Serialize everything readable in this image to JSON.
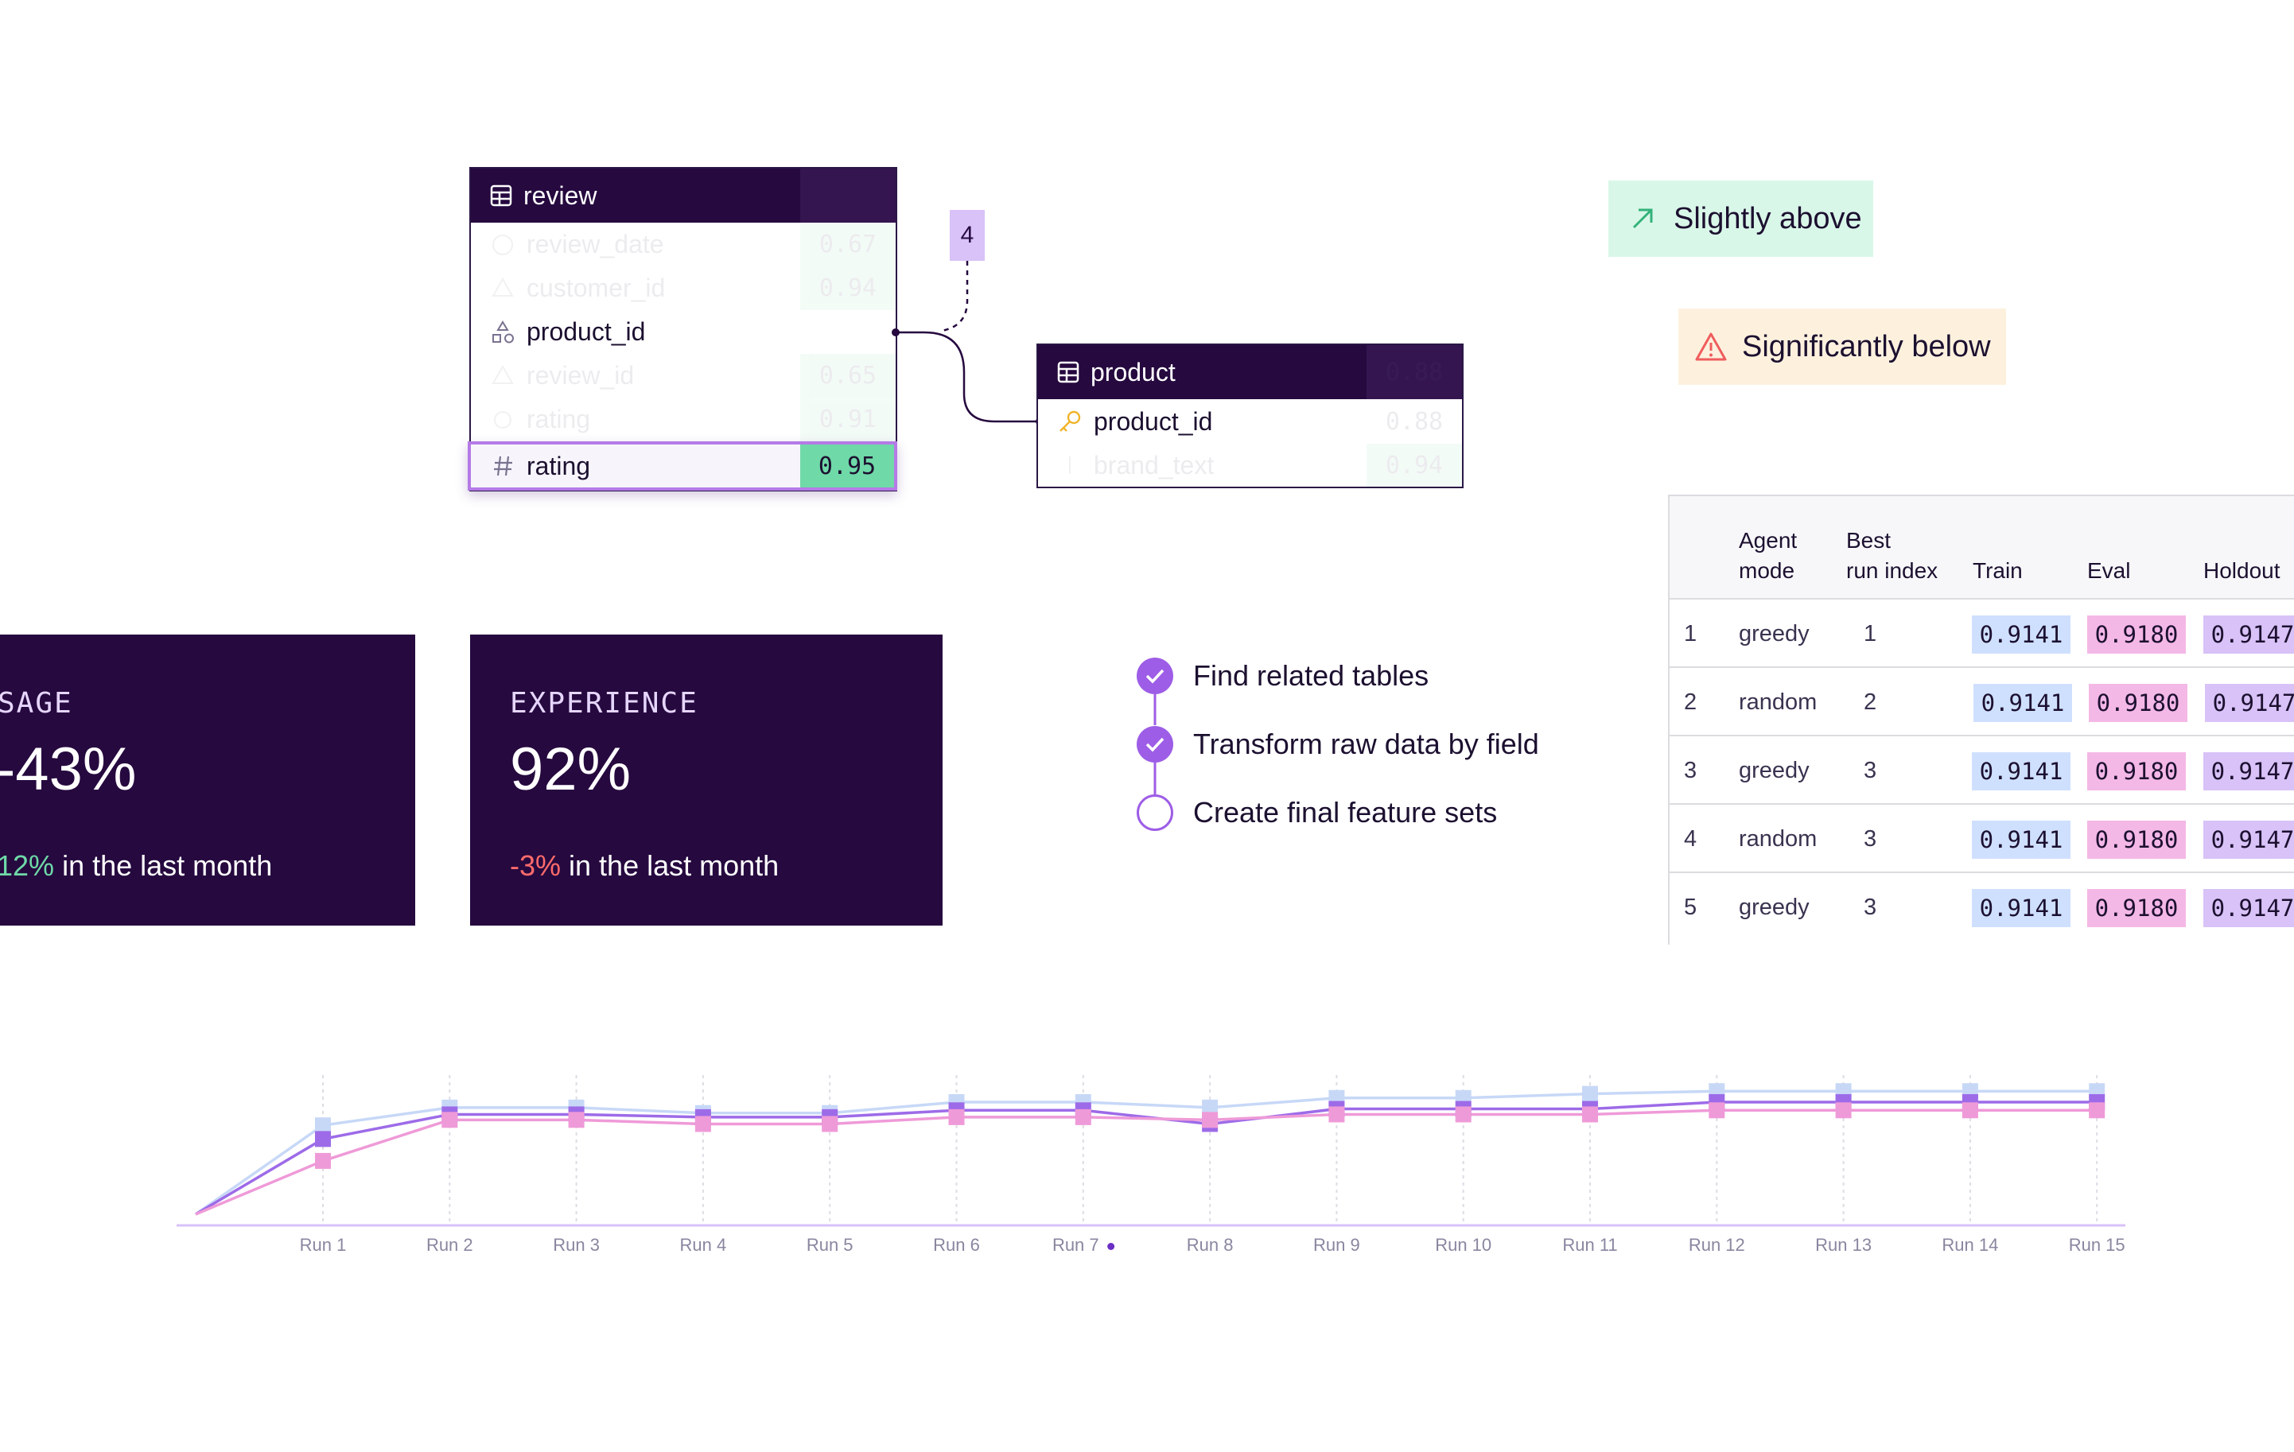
{
  "review": {
    "title": "review",
    "rows": [
      {
        "label": "review_date",
        "score": "0.67"
      },
      {
        "label": "customer_id",
        "score": "0.94"
      },
      {
        "label": "product_id",
        "score": ""
      },
      {
        "label": "review_id",
        "score": "0.65"
      },
      {
        "label": "rating",
        "score": "0.91"
      }
    ],
    "selected": {
      "label": "rating",
      "score": "0.95"
    }
  },
  "connector_count": "4",
  "product": {
    "title": "product",
    "header_score": "0.88",
    "rows": [
      {
        "label": "product_id",
        "score": "0.88"
      },
      {
        "label": "brand_text",
        "score": "0.94"
      }
    ]
  },
  "badges": {
    "above": {
      "label": "Slightly above",
      "icon": "arrow-up-right-icon",
      "color": "#d9f7e8"
    },
    "below": {
      "label": "Significantly below",
      "icon": "warning-triangle-icon",
      "color": "#fdf1de"
    }
  },
  "stats": [
    {
      "label": "SAGE",
      "value": "-43%",
      "delta": "12%",
      "suffix": " in the last month",
      "delta_color": "#6fd9a8"
    },
    {
      "label": "EXPERIENCE",
      "value": "92%",
      "delta": "-3%",
      "suffix": " in the last month",
      "delta_color": "#ff6b6b"
    }
  ],
  "steps": [
    {
      "label": "Find related tables",
      "done": true
    },
    {
      "label": "Transform raw data by field",
      "done": true
    },
    {
      "label": "Create final feature sets",
      "done": false
    }
  ],
  "table": {
    "headers": {
      "mode": [
        "Agent",
        "mode"
      ],
      "best": [
        "Best",
        "run index"
      ],
      "train": "Train",
      "eval": "Eval",
      "holdout": "Holdout"
    },
    "rows": [
      {
        "idx": "1",
        "mode": "greedy",
        "best": "1",
        "train": "0.9141",
        "eval": "0.9180",
        "holdout": "0.9147"
      },
      {
        "idx": "2",
        "mode": "random",
        "best": "2",
        "train": "0.9141",
        "eval": "0.9180",
        "holdout": "0.9147"
      },
      {
        "idx": "3",
        "mode": "greedy",
        "best": "3",
        "train": "0.9141",
        "eval": "0.9180",
        "holdout": "0.9147"
      },
      {
        "idx": "4",
        "mode": "random",
        "best": "3",
        "train": "0.9141",
        "eval": "0.9180",
        "holdout": "0.9147"
      },
      {
        "idx": "5",
        "mode": "greedy",
        "best": "3",
        "train": "0.9141",
        "eval": "0.9180",
        "holdout": "0.9147"
      }
    ],
    "colors": {
      "train": "#cfe0ff",
      "eval": "#f4b8e6",
      "holdout": "#d8c2f7"
    }
  },
  "chart_data": {
    "type": "line",
    "categories": [
      "Run 1",
      "Run 2",
      "Run 3",
      "Run 4",
      "Run 5",
      "Run 6",
      "Run 7",
      "Run 8",
      "Run 9",
      "Run 10",
      "Run 11",
      "Run 12",
      "Run 13",
      "Run 14",
      "Run 15"
    ],
    "highlight": "Run 7",
    "start_value": 0,
    "ylim": [
      0,
      1
    ],
    "series": [
      {
        "color": "#c7d8f7",
        "values": [
          0.65,
          0.78,
          0.78,
          0.74,
          0.74,
          0.82,
          0.82,
          0.78,
          0.85,
          0.85,
          0.88,
          0.9,
          0.9,
          0.9,
          0.9
        ]
      },
      {
        "color": "#9d6be8",
        "values": [
          0.55,
          0.73,
          0.73,
          0.71,
          0.71,
          0.76,
          0.76,
          0.66,
          0.77,
          0.77,
          0.77,
          0.82,
          0.82,
          0.82,
          0.82
        ]
      },
      {
        "color": "#ef9ad8",
        "values": [
          0.39,
          0.69,
          0.69,
          0.66,
          0.66,
          0.71,
          0.71,
          0.69,
          0.73,
          0.73,
          0.73,
          0.76,
          0.76,
          0.76,
          0.76
        ]
      }
    ]
  }
}
